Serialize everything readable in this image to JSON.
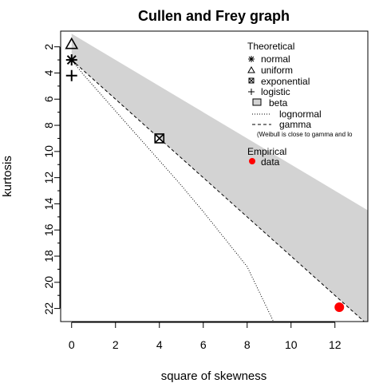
{
  "chart_data": {
    "type": "scatter",
    "title": "Cullen and Frey graph",
    "xlabel": "square of skewness",
    "ylabel": "kurtosis",
    "xlim": [
      -0.5,
      13.5
    ],
    "ylim": [
      23,
      0.8
    ],
    "y_reversed": true,
    "xticks": [
      0,
      2,
      4,
      6,
      8,
      10,
      12
    ],
    "yticks": [
      2,
      4,
      6,
      8,
      10,
      12,
      14,
      16,
      18,
      20,
      22
    ],
    "theoretical": {
      "normal": {
        "x": 0,
        "y": 3
      },
      "uniform": {
        "x": 0,
        "y": 1.8
      },
      "exponential": {
        "x": 4,
        "y": 9
      },
      "logistic": {
        "x": 0,
        "y": 4.2
      },
      "beta_region": {
        "lower_line": {
          "intercept": 1,
          "slope": 1
        },
        "upper_line": {
          "intercept": 3,
          "slope": 1.5
        }
      },
      "gamma_line": {
        "intercept": 3,
        "slope": 1.5
      },
      "lognormal_curve": [
        {
          "x": 0,
          "y": 3.0
        },
        {
          "x": 0.5,
          "y": 4.05
        },
        {
          "x": 1,
          "y": 5.0
        },
        {
          "x": 2,
          "y": 6.9
        },
        {
          "x": 3,
          "y": 8.8
        },
        {
          "x": 4,
          "y": 10.7
        },
        {
          "x": 5,
          "y": 12.6
        },
        {
          "x": 6,
          "y": 14.6
        },
        {
          "x": 7,
          "y": 16.7
        },
        {
          "x": 8,
          "y": 18.8
        },
        {
          "x": 9.2,
          "y": 23.0
        }
      ]
    },
    "empirical": {
      "name": "data",
      "x": 12.2,
      "y": 21.9,
      "color": "#ff0000"
    },
    "colors": {
      "beta_fill": "#d3d3d3",
      "data": "#ff0000"
    }
  },
  "legend": {
    "theoretical_title": "Theoretical",
    "normal": "normal",
    "uniform": "uniform",
    "exponential": "exponential",
    "logistic": "logistic",
    "beta": "beta",
    "lognormal": "lognormal",
    "gamma": "gamma",
    "note": "(Weibull is close to gamma and lo",
    "empirical_title": "Empirical",
    "data": "data"
  }
}
